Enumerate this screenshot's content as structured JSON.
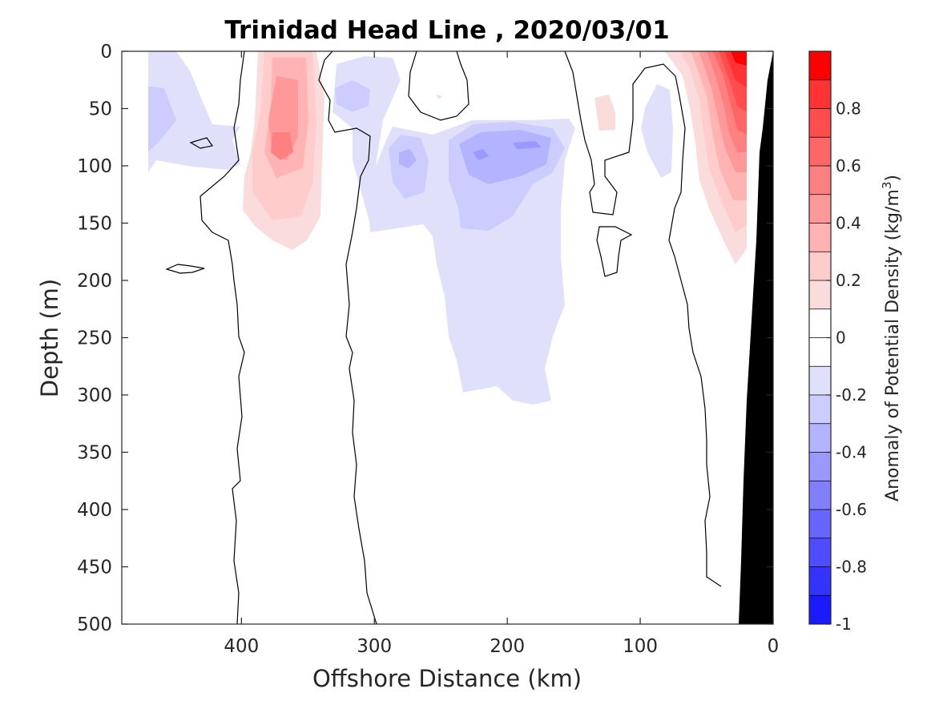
{
  "chart_data": {
    "type": "heatmap",
    "title": "Trinidad Head Line , 2020/03/01",
    "xlabel": "Offshore Distance (km)",
    "ylabel": "Depth (m)",
    "xlim": [
      490,
      0
    ],
    "ylim": [
      0,
      500
    ],
    "x_reversed": true,
    "y_reversed": true,
    "x_ticks": [
      {
        "value": 400,
        "label": "400"
      },
      {
        "value": 300,
        "label": "300"
      },
      {
        "value": 200,
        "label": "200"
      },
      {
        "value": 100,
        "label": "100"
      },
      {
        "value": 0,
        "label": "0"
      }
    ],
    "y_ticks": [
      {
        "value": 0,
        "label": "0"
      },
      {
        "value": 50,
        "label": "50"
      },
      {
        "value": 100,
        "label": "100"
      },
      {
        "value": 150,
        "label": "150"
      },
      {
        "value": 200,
        "label": "200"
      },
      {
        "value": 250,
        "label": "250"
      },
      {
        "value": 300,
        "label": "300"
      },
      {
        "value": 350,
        "label": "350"
      },
      {
        "value": 400,
        "label": "400"
      },
      {
        "value": 450,
        "label": "450"
      },
      {
        "value": 500,
        "label": "500"
      }
    ],
    "colorbar": {
      "label_main": "Anomaly of Potential Density (kg/m",
      "label_sup": "3",
      "label_close": ")",
      "range": [
        -1,
        1
      ],
      "levels": [
        -1,
        -0.9,
        -0.8,
        -0.7,
        -0.6,
        -0.5,
        -0.4,
        -0.3,
        -0.2,
        -0.1,
        0,
        0.1,
        0.2,
        0.3,
        0.4,
        0.5,
        0.6,
        0.7,
        0.8,
        0.9,
        1
      ],
      "colors": [
        "#0000ff",
        "#1a1aff",
        "#3333ff",
        "#4d4dff",
        "#6666ff",
        "#8080ff",
        "#9999ff",
        "#b3b3ff",
        "#ccccff",
        "#e0e0fa",
        "#ffffff",
        "#ffffff",
        "#fadcdc",
        "#ffcccc",
        "#ffb3b3",
        "#ff9999",
        "#ff8080",
        "#ff6666",
        "#ff4d4d",
        "#ff3333",
        "#ff0000"
      ],
      "ticks": [
        {
          "value": -1,
          "label": "-1"
        },
        {
          "value": -0.8,
          "label": "-0.8"
        },
        {
          "value": -0.6,
          "label": "-0.6"
        },
        {
          "value": -0.4,
          "label": "-0.4"
        },
        {
          "value": -0.2,
          "label": "-0.2"
        },
        {
          "value": 0,
          "label": "0"
        },
        {
          "value": 0.2,
          "label": "0.2"
        },
        {
          "value": 0.4,
          "label": "0.4"
        },
        {
          "value": 0.6,
          "label": "0.6"
        },
        {
          "value": 0.8,
          "label": "0.8"
        }
      ]
    },
    "anomaly_regions": [
      {
        "name": "offshore-negative-anomaly",
        "x_km": [
          470,
          440
        ],
        "depth_m": [
          0,
          105
        ],
        "max_abs_value": -0.2
      },
      {
        "name": "positive-anomaly-near-370km",
        "x_km": [
          390,
          330
        ],
        "depth_m": [
          0,
          170
        ],
        "max_abs_value": 0.45
      },
      {
        "name": "negative-anomaly-near-300km",
        "x_km": [
          320,
          280
        ],
        "depth_m": [
          20,
          130
        ],
        "max_abs_value": -0.3
      },
      {
        "name": "negative-anomaly-near-200km",
        "x_km": [
          290,
          150
        ],
        "depth_m": [
          60,
          310
        ],
        "max_abs_value": -0.45
      },
      {
        "name": "small-positive-anomaly-near-120km",
        "x_km": [
          135,
          115
        ],
        "depth_m": [
          40,
          70
        ],
        "max_abs_value": 0.15
      },
      {
        "name": "negative-anomaly-near-90km",
        "x_km": [
          100,
          80
        ],
        "depth_m": [
          30,
          110
        ],
        "max_abs_value": -0.2
      },
      {
        "name": "nearshore-positive-anomaly",
        "x_km": [
          70,
          20
        ],
        "depth_m": [
          0,
          185
        ],
        "max_abs_value": 0.9
      }
    ],
    "bathymetry_color": "#000000"
  }
}
